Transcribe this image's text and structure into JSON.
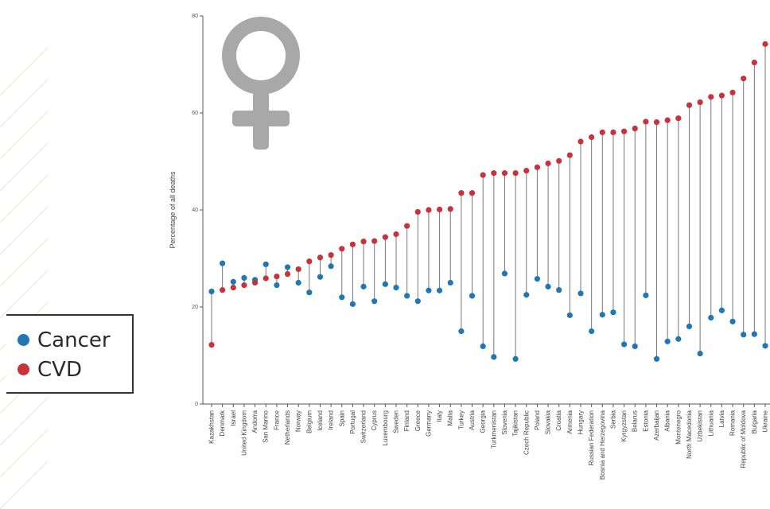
{
  "legend": {
    "cancer_label": "Cancer",
    "cvd_label": "CVD"
  },
  "icons": {
    "symbol": "female-symbol-icon",
    "symbol_color": "#a8a8a8"
  },
  "colors": {
    "cancer": "#1f77b4",
    "cvd": "#c8323c",
    "stem": "#777777"
  },
  "chart_data": {
    "type": "scatter",
    "style": "dumbbell",
    "title": "",
    "xlabel": "",
    "ylabel": "Percentage of all deaths",
    "ylim": [
      0,
      80
    ],
    "yticks": [
      0,
      20,
      40,
      60,
      80
    ],
    "categories": [
      "Kazakhstan",
      "Denmark",
      "Israel",
      "United Kingdom",
      "Andorra",
      "San Marino",
      "France",
      "Netherlands",
      "Norway",
      "Belgium",
      "Iceland",
      "Ireland",
      "Spain",
      "Portugal",
      "Switzerland",
      "Cyprus",
      "Luxembourg",
      "Sweden",
      "Finland",
      "Greece",
      "Germany",
      "Italy",
      "Malta",
      "Turkey",
      "Austria",
      "Georgia",
      "Turkmenistan",
      "Slovenia",
      "Tajikistan",
      "Czech Republic",
      "Poland",
      "Slovakia",
      "Croatia",
      "Armenia",
      "Hungary",
      "Russian Federation",
      "Bosnia and Herzegovina",
      "Serbia",
      "Kyrgyzstan",
      "Belarus",
      "Estonia",
      "Azerbaijan",
      "Albania",
      "Montenegro",
      "North Macedonia",
      "Uzbekistan",
      "Lithuania",
      "Latvia",
      "Romania",
      "Republic of Moldova",
      "Bulgaria",
      "Ukraine"
    ],
    "series": [
      {
        "name": "Cancer",
        "values": [
          23.2,
          29,
          25.2,
          26,
          25.6,
          28.8,
          24.5,
          28.2,
          25,
          23,
          26.2,
          28.4,
          22,
          20.6,
          24.2,
          21.2,
          24.7,
          24,
          22.3,
          21.2,
          23.4,
          23.4,
          25,
          15,
          22.3,
          11.9,
          9.7,
          26.9,
          9.3,
          22.5,
          25.8,
          24.2,
          23.5,
          18.3,
          22.8,
          15,
          18.4,
          18.9,
          12.3,
          11.9,
          22.4,
          9.3,
          12.9,
          13.4,
          16,
          10.4,
          17.8,
          19.3,
          17,
          14.3,
          14.4,
          12
        ]
      },
      {
        "name": "CVD",
        "values": [
          12.2,
          23.5,
          24,
          24.5,
          25,
          25.9,
          26.3,
          26.8,
          27.8,
          29.4,
          30.2,
          30.7,
          32,
          32.9,
          33.5,
          33.6,
          34.4,
          35,
          36.7,
          39.6,
          40,
          40.1,
          40.2,
          43.5,
          43.5,
          47.2,
          47.6,
          47.6,
          47.6,
          48.1,
          48.8,
          49.6,
          50.1,
          51.3,
          54.1,
          55,
          56,
          56,
          56.2,
          56.8,
          58.2,
          58.1,
          58.5,
          58.9,
          61.6,
          62.2,
          63.3,
          63.6,
          64.2,
          67.1,
          70.4,
          74.2
        ]
      }
    ]
  }
}
